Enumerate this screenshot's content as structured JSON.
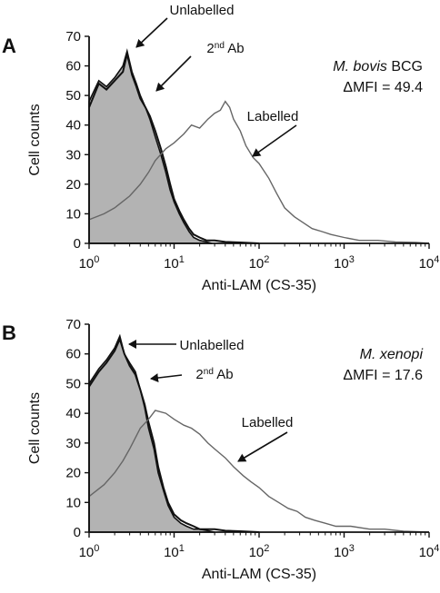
{
  "chart_data": [
    {
      "type": "area",
      "panel_label": "A",
      "xlabel": "Anti-LAM (CS-35)",
      "ylabel": "Cell counts",
      "xscale": "log",
      "xlim": [
        1,
        10000
      ],
      "ylim": [
        0,
        70
      ],
      "x_tick_labels": [
        {
          "base": "10",
          "exp": "0"
        },
        {
          "base": "10",
          "exp": "1"
        },
        {
          "base": "10",
          "exp": "2"
        },
        {
          "base": "10",
          "exp": "3"
        },
        {
          "base": "10",
          "exp": "4"
        }
      ],
      "y_tick_labels": [
        "0",
        "10",
        "20",
        "30",
        "40",
        "50",
        "60",
        "70"
      ],
      "grid": false,
      "info": {
        "organism": "M. bovis",
        "organism_suffix": " BCG",
        "delta_mfi": "ΔMFI = 49.4"
      },
      "series": [
        {
          "name": "Unlabelled",
          "style": "filled",
          "color": "#b3b3b3",
          "x": [
            1,
            1.3,
            1.6,
            2,
            2.5,
            2.8,
            3.2,
            3.6,
            4,
            4.6,
            5.2,
            6,
            7,
            8,
            9,
            10,
            11.5,
            13,
            15,
            17,
            20,
            24,
            28
          ],
          "y": [
            48,
            55,
            53,
            56,
            60,
            65,
            58,
            54,
            50,
            46,
            42,
            36,
            30,
            24,
            18,
            14,
            10,
            7,
            4,
            2,
            1,
            0.5,
            0
          ]
        },
        {
          "name": "2nd Ab",
          "style": "line",
          "color": "#111111",
          "x": [
            1,
            1.3,
            1.6,
            2,
            2.5,
            2.8,
            3.2,
            3.6,
            4,
            4.6,
            5.2,
            6,
            7,
            8,
            9,
            10,
            11.5,
            13,
            15,
            17,
            20,
            24,
            30,
            40,
            60,
            100
          ],
          "y": [
            46,
            54,
            52,
            55,
            58,
            64,
            57,
            53,
            49,
            46,
            43,
            38,
            32,
            26,
            20,
            15,
            11,
            8,
            5,
            3,
            2,
            1,
            1,
            0.5,
            0.3,
            0
          ]
        },
        {
          "name": "Labelled",
          "style": "line",
          "color": "#666666",
          "x": [
            1,
            1.5,
            2,
            3,
            4,
            5,
            6,
            8,
            10,
            13,
            16,
            20,
            25,
            30,
            35,
            40,
            45,
            50,
            60,
            70,
            85,
            100,
            130,
            160,
            200,
            260,
            330,
            420,
            550,
            700,
            1000,
            1500,
            2500,
            4000,
            7000,
            10000
          ],
          "y": [
            8,
            10,
            12,
            16,
            20,
            24,
            28,
            32,
            34,
            37,
            40,
            39,
            42,
            44,
            45,
            48,
            46,
            42,
            38,
            33,
            29,
            27,
            22,
            17,
            12,
            9,
            7,
            5,
            4,
            3,
            2,
            1,
            1,
            0.5,
            0.3,
            0
          ]
        }
      ],
      "annotations": [
        "Unlabelled",
        "2nd Ab",
        "Labelled"
      ]
    },
    {
      "type": "area",
      "panel_label": "B",
      "xlabel": "Anti-LAM (CS-35)",
      "ylabel": "Cell counts",
      "xscale": "log",
      "xlim": [
        1,
        10000
      ],
      "ylim": [
        0,
        70
      ],
      "x_tick_labels": [
        {
          "base": "10",
          "exp": "0"
        },
        {
          "base": "10",
          "exp": "1"
        },
        {
          "base": "10",
          "exp": "2"
        },
        {
          "base": "10",
          "exp": "3"
        },
        {
          "base": "10",
          "exp": "4"
        }
      ],
      "y_tick_labels": [
        "0",
        "10",
        "20",
        "30",
        "40",
        "50",
        "60",
        "70"
      ],
      "grid": false,
      "info": {
        "organism": "M. xenopi",
        "organism_suffix": "",
        "delta_mfi": "ΔMFI = 17.6"
      },
      "series": [
        {
          "name": "Unlabelled",
          "style": "filled",
          "color": "#b3b3b3",
          "x": [
            1,
            1.3,
            1.6,
            2,
            2.3,
            2.6,
            3,
            3.5,
            4,
            4.5,
            5,
            5.8,
            6.5,
            7.5,
            8.5,
            10,
            12,
            14,
            17,
            20,
            25,
            30
          ],
          "y": [
            50,
            55,
            58,
            62,
            66,
            60,
            57,
            54,
            48,
            42,
            35,
            28,
            20,
            14,
            9,
            5,
            3,
            2,
            1,
            1,
            0.5,
            0
          ]
        },
        {
          "name": "2nd Ab",
          "style": "line",
          "color": "#111111",
          "x": [
            1,
            1.3,
            1.6,
            2,
            2.3,
            2.6,
            3,
            3.5,
            4,
            4.5,
            5,
            5.8,
            6.5,
            7.5,
            8.5,
            10,
            12,
            14,
            17,
            20,
            25,
            30,
            40,
            60,
            100
          ],
          "y": [
            49,
            54,
            57,
            61,
            65,
            60,
            56,
            53,
            48,
            43,
            37,
            30,
            22,
            15,
            10,
            6,
            4,
            3,
            2,
            1,
            1,
            1,
            0.5,
            0.3,
            0
          ]
        },
        {
          "name": "Labelled",
          "style": "line",
          "color": "#666666",
          "x": [
            1,
            1.5,
            2,
            2.5,
            3,
            4,
            5,
            6,
            8,
            10,
            13,
            16,
            20,
            25,
            30,
            40,
            50,
            65,
            80,
            100,
            130,
            170,
            220,
            280,
            350,
            450,
            600,
            800,
            1200,
            2000,
            3000,
            5000,
            10000
          ],
          "y": [
            12,
            16,
            20,
            24,
            28,
            35,
            38,
            41,
            40,
            38,
            36,
            35,
            33,
            30,
            28,
            25,
            22,
            19,
            17,
            15,
            12,
            10,
            8,
            7,
            5,
            4,
            3,
            2,
            2,
            1,
            1,
            0.3,
            0
          ]
        }
      ],
      "annotations": [
        "Unlabelled",
        "2nd Ab",
        "Labelled"
      ]
    }
  ]
}
